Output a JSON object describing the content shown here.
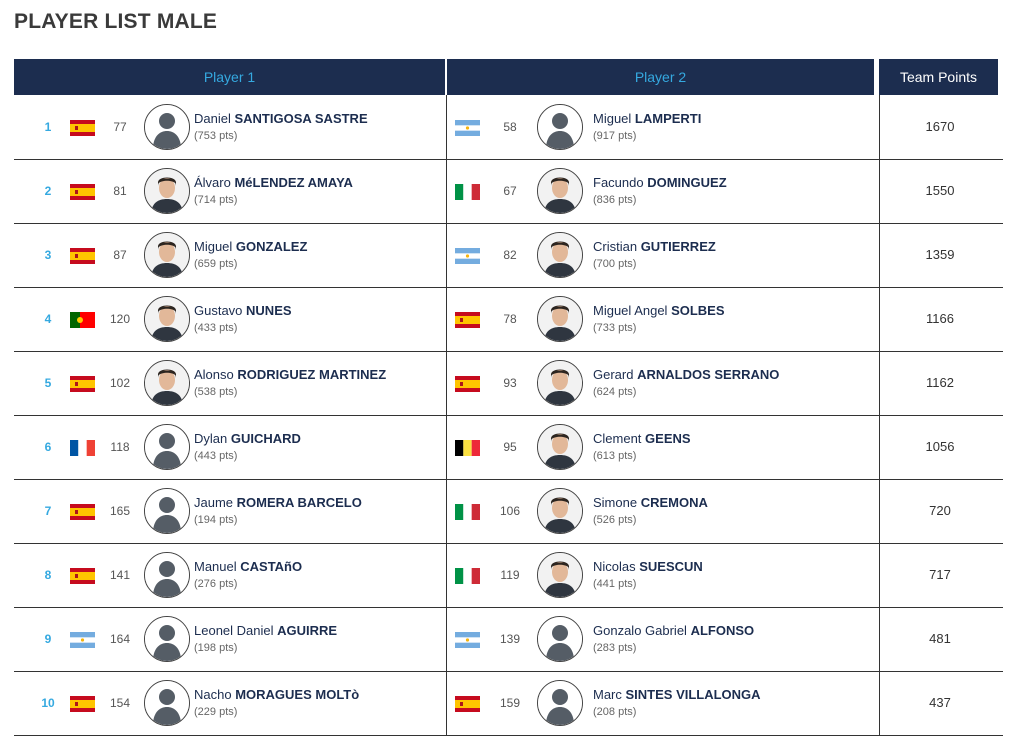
{
  "title": "PLAYER LIST MALE",
  "headers": {
    "player1": "Player 1",
    "player2": "Player 2",
    "team_points": "Team Points"
  },
  "rows": [
    {
      "num": "1",
      "p1": {
        "flag": "es",
        "rank": "77",
        "first": "Daniel ",
        "last": "SANTIGOSA SASTRE",
        "pts": "(753 pts)",
        "photo": "placeholder"
      },
      "p2": {
        "flag": "ar",
        "rank": "58",
        "first": "Miguel ",
        "last": "LAMPERTI",
        "pts": "(917 pts)",
        "photo": "placeholder"
      },
      "team": "1670"
    },
    {
      "num": "2",
      "p1": {
        "flag": "es",
        "rank": "81",
        "first": "Álvaro ",
        "last": "MéLENDEZ AMAYA",
        "pts": "(714 pts)",
        "photo": "face"
      },
      "p2": {
        "flag": "it",
        "rank": "67",
        "first": "Facundo ",
        "last": "DOMINGUEZ",
        "pts": "(836 pts)",
        "photo": "face"
      },
      "team": "1550"
    },
    {
      "num": "3",
      "p1": {
        "flag": "es",
        "rank": "87",
        "first": "Miguel ",
        "last": "GONZALEZ",
        "pts": "(659 pts)",
        "photo": "face"
      },
      "p2": {
        "flag": "ar",
        "rank": "82",
        "first": "Cristian ",
        "last": "GUTIERREZ",
        "pts": "(700 pts)",
        "photo": "face"
      },
      "team": "1359"
    },
    {
      "num": "4",
      "p1": {
        "flag": "pt",
        "rank": "120",
        "first": "Gustavo ",
        "last": "NUNES",
        "pts": "(433 pts)",
        "photo": "face"
      },
      "p2": {
        "flag": "es",
        "rank": "78",
        "first": "Miguel Angel ",
        "last": "SOLBES",
        "pts": "(733 pts)",
        "photo": "face"
      },
      "team": "1166"
    },
    {
      "num": "5",
      "p1": {
        "flag": "es",
        "rank": "102",
        "first": "Alonso ",
        "last": "RODRIGUEZ MARTINEZ",
        "pts": "(538 pts)",
        "photo": "face"
      },
      "p2": {
        "flag": "es",
        "rank": "93",
        "first": "Gerard ",
        "last": "ARNALDOS SERRANO",
        "pts": "(624 pts)",
        "photo": "face"
      },
      "team": "1162"
    },
    {
      "num": "6",
      "p1": {
        "flag": "fr",
        "rank": "118",
        "first": "Dylan ",
        "last": "GUICHARD",
        "pts": "(443 pts)",
        "photo": "placeholder"
      },
      "p2": {
        "flag": "be",
        "rank": "95",
        "first": "Clement ",
        "last": "GEENS",
        "pts": "(613 pts)",
        "photo": "face"
      },
      "team": "1056"
    },
    {
      "num": "7",
      "p1": {
        "flag": "es",
        "rank": "165",
        "first": "Jaume ",
        "last": "ROMERA BARCELO",
        "pts": "(194 pts)",
        "photo": "placeholder"
      },
      "p2": {
        "flag": "it",
        "rank": "106",
        "first": "Simone ",
        "last": "CREMONA",
        "pts": "(526 pts)",
        "photo": "face"
      },
      "team": "720"
    },
    {
      "num": "8",
      "p1": {
        "flag": "es",
        "rank": "141",
        "first": "Manuel ",
        "last": "CASTAñO",
        "pts": "(276 pts)",
        "photo": "placeholder"
      },
      "p2": {
        "flag": "it",
        "rank": "119",
        "first": "Nicolas ",
        "last": "SUESCUN",
        "pts": "(441 pts)",
        "photo": "face"
      },
      "team": "717"
    },
    {
      "num": "9",
      "p1": {
        "flag": "ar",
        "rank": "164",
        "first": "Leonel Daniel ",
        "last": "AGUIRRE",
        "pts": "(198 pts)",
        "photo": "placeholder"
      },
      "p2": {
        "flag": "ar",
        "rank": "139",
        "first": "Gonzalo Gabriel ",
        "last": "ALFONSO",
        "pts": "(283 pts)",
        "photo": "placeholder"
      },
      "team": "481"
    },
    {
      "num": "10",
      "p1": {
        "flag": "es",
        "rank": "154",
        "first": "Nacho ",
        "last": "MORAGUES MOLTò",
        "pts": "(229 pts)",
        "photo": "placeholder"
      },
      "p2": {
        "flag": "es",
        "rank": "159",
        "first": "Marc ",
        "last": "SINTES VILLALONGA",
        "pts": "(208 pts)",
        "photo": "placeholder"
      },
      "team": "437"
    }
  ],
  "colors": {
    "header_bg": "#1c2d4f",
    "accent": "#35a9e0",
    "name": "#1c2d4f"
  }
}
